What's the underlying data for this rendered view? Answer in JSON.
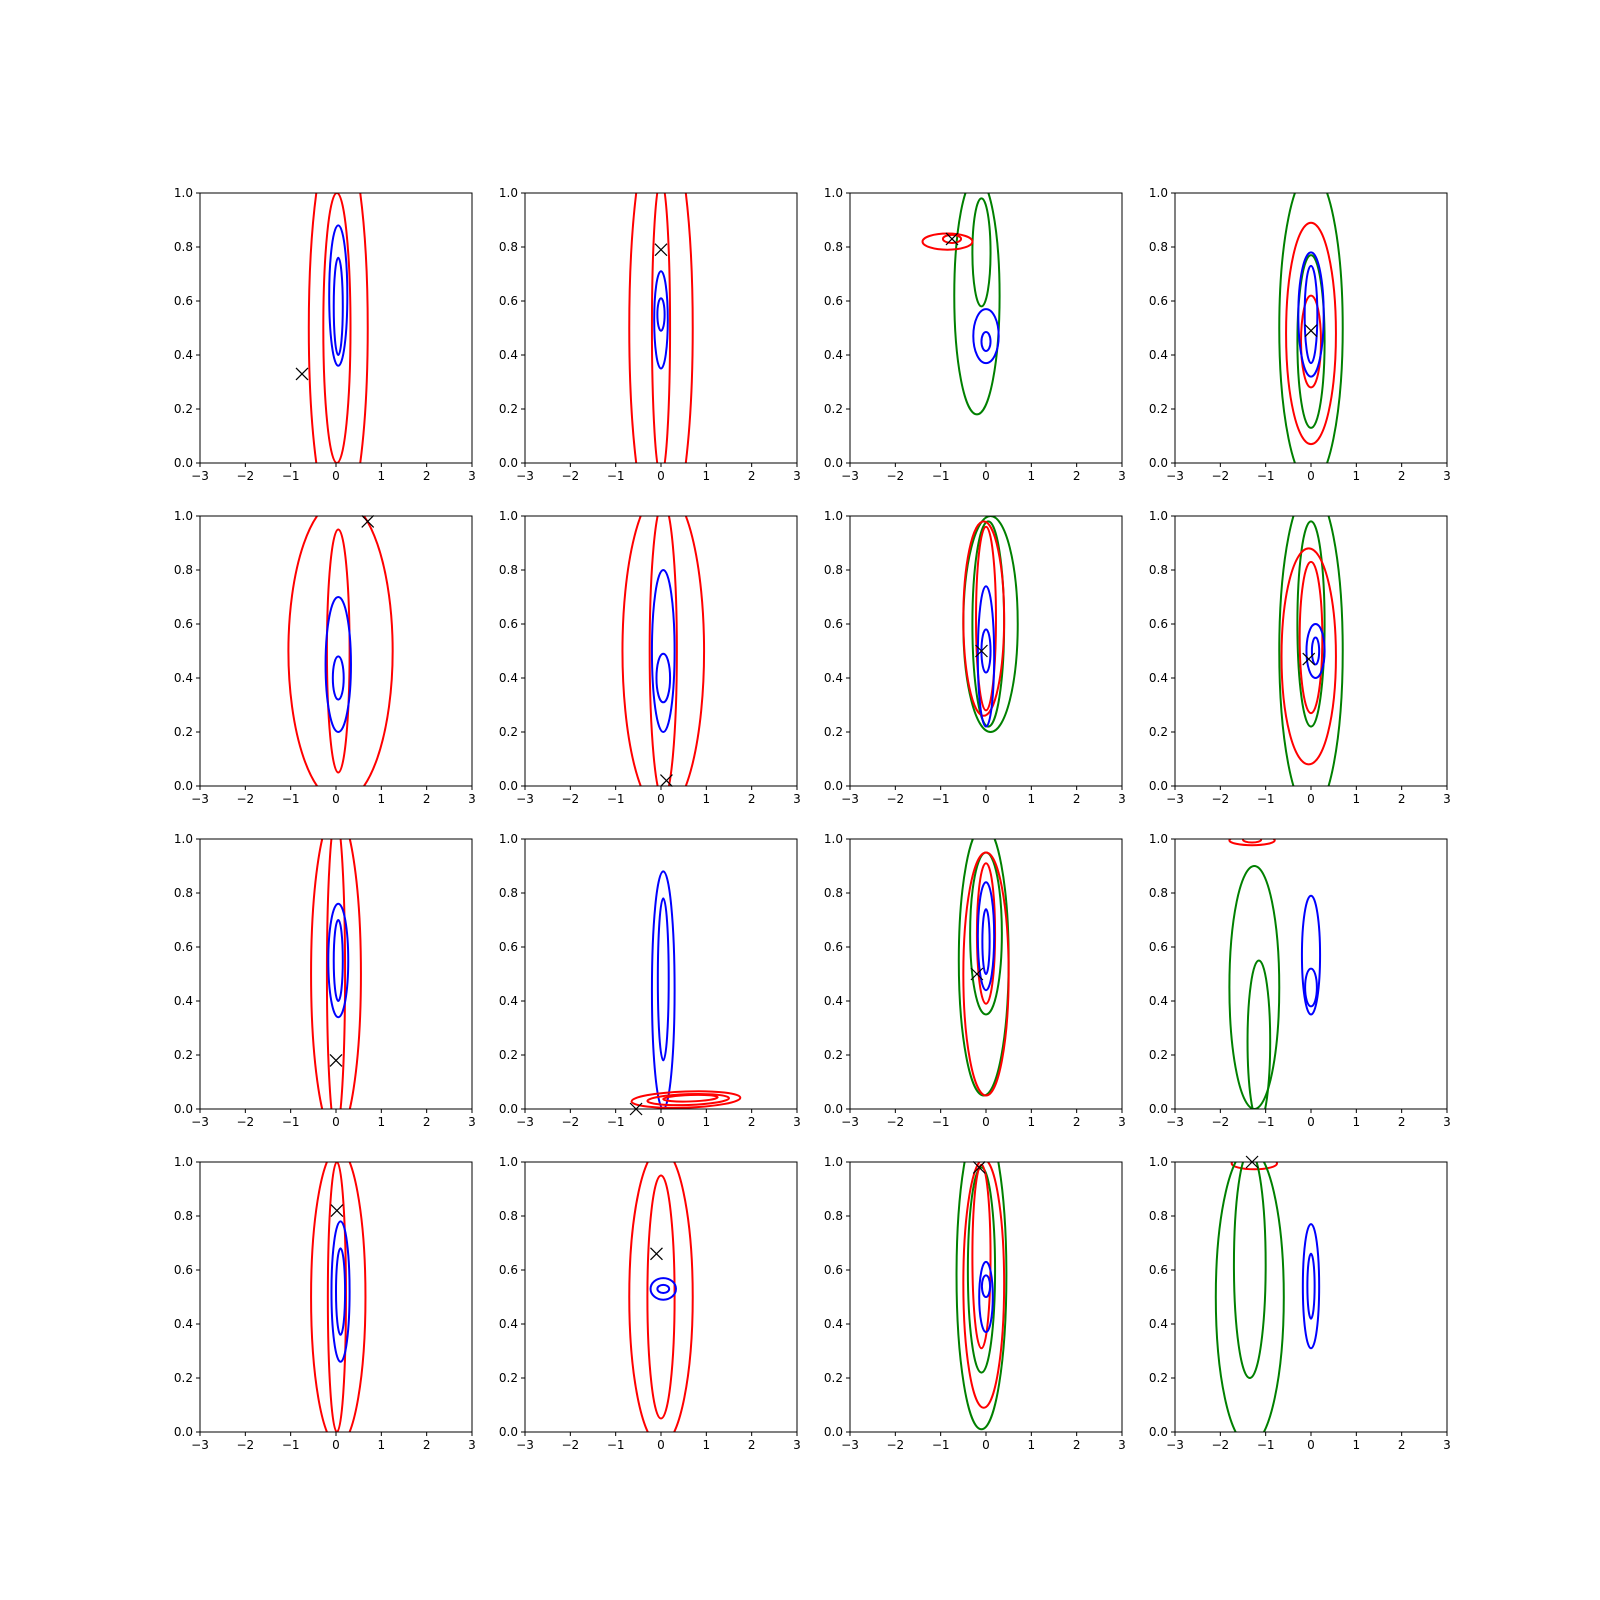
{
  "chart_data": {
    "type": "contour-grid",
    "rows": 4,
    "cols": 4,
    "xlim": [
      -3,
      3
    ],
    "ylim": [
      0,
      1
    ],
    "xticks": [
      -3,
      -2,
      -1,
      0,
      1,
      2,
      3
    ],
    "yticks": [
      0.0,
      0.2,
      0.4,
      0.6,
      0.8,
      1.0
    ],
    "xtick_labels": [
      "−3",
      "−2",
      "−1",
      "0",
      "1",
      "2",
      "3"
    ],
    "ytick_labels": [
      "0.0",
      "0.2",
      "0.4",
      "0.6",
      "0.8",
      "1.0"
    ],
    "colors": {
      "red": "#ff0000",
      "blue": "#0000ff",
      "green": "#008000",
      "marker": "#000000"
    },
    "marker_symbol": "x",
    "panels": [
      {
        "marker": [
          -0.75,
          0.33
        ],
        "contours": [
          {
            "color": "red",
            "cx": 0.05,
            "cy": 0.5,
            "rx": 0.65,
            "ry": 0.75
          },
          {
            "color": "red",
            "cx": 0.02,
            "cy": 0.5,
            "rx": 0.3,
            "ry": 0.5
          },
          {
            "color": "blue",
            "cx": 0.05,
            "cy": 0.62,
            "rx": 0.2,
            "ry": 0.26
          },
          {
            "color": "blue",
            "cx": 0.05,
            "cy": 0.58,
            "rx": 0.1,
            "ry": 0.18
          }
        ]
      },
      {
        "marker": [
          0.0,
          0.79
        ],
        "contours": [
          {
            "color": "red",
            "cx": 0.0,
            "cy": 0.5,
            "rx": 0.7,
            "ry": 0.8
          },
          {
            "color": "red",
            "cx": 0.0,
            "cy": 0.5,
            "rx": 0.2,
            "ry": 0.55
          },
          {
            "color": "blue",
            "cx": 0.0,
            "cy": 0.53,
            "rx": 0.15,
            "ry": 0.18
          },
          {
            "color": "blue",
            "cx": 0.0,
            "cy": 0.55,
            "rx": 0.08,
            "ry": 0.06
          }
        ]
      },
      {
        "marker": [
          -0.75,
          0.83
        ],
        "contours": [
          {
            "color": "green",
            "cx": -0.2,
            "cy": 0.62,
            "rx": 0.5,
            "ry": 0.44
          },
          {
            "color": "green",
            "cx": -0.1,
            "cy": 0.78,
            "rx": 0.2,
            "ry": 0.2
          },
          {
            "color": "red",
            "cx": -0.85,
            "cy": 0.82,
            "rx": 0.55,
            "ry": 0.03
          },
          {
            "color": "red",
            "cx": -0.75,
            "cy": 0.83,
            "rx": 0.2,
            "ry": 0.015
          },
          {
            "color": "blue",
            "cx": 0.0,
            "cy": 0.47,
            "rx": 0.28,
            "ry": 0.1
          },
          {
            "color": "blue",
            "cx": 0.0,
            "cy": 0.45,
            "rx": 0.1,
            "ry": 0.035
          }
        ]
      },
      {
        "marker": [
          0.0,
          0.49
        ],
        "contours": [
          {
            "color": "green",
            "cx": 0.0,
            "cy": 0.5,
            "rx": 0.7,
            "ry": 0.58
          },
          {
            "color": "green",
            "cx": 0.0,
            "cy": 0.45,
            "rx": 0.3,
            "ry": 0.32
          },
          {
            "color": "red",
            "cx": 0.0,
            "cy": 0.48,
            "rx": 0.55,
            "ry": 0.41
          },
          {
            "color": "red",
            "cx": 0.0,
            "cy": 0.45,
            "rx": 0.22,
            "ry": 0.17
          },
          {
            "color": "blue",
            "cx": 0.0,
            "cy": 0.55,
            "rx": 0.28,
            "ry": 0.23
          },
          {
            "color": "blue",
            "cx": 0.0,
            "cy": 0.55,
            "rx": 0.14,
            "ry": 0.18
          }
        ]
      },
      {
        "marker": [
          0.7,
          0.98
        ],
        "contours": [
          {
            "color": "red",
            "cx": 0.1,
            "cy": 0.5,
            "rx": 1.15,
            "ry": 0.56
          },
          {
            "color": "red",
            "cx": 0.05,
            "cy": 0.5,
            "rx": 0.25,
            "ry": 0.45
          },
          {
            "color": "blue",
            "cx": 0.05,
            "cy": 0.45,
            "rx": 0.28,
            "ry": 0.25
          },
          {
            "color": "blue",
            "cx": 0.05,
            "cy": 0.4,
            "rx": 0.12,
            "ry": 0.08
          }
        ]
      },
      {
        "marker": [
          0.12,
          0.02
        ],
        "contours": [
          {
            "color": "red",
            "cx": 0.05,
            "cy": 0.5,
            "rx": 0.9,
            "ry": 0.6
          },
          {
            "color": "red",
            "cx": 0.05,
            "cy": 0.5,
            "rx": 0.3,
            "ry": 0.55
          },
          {
            "color": "blue",
            "cx": 0.05,
            "cy": 0.5,
            "rx": 0.25,
            "ry": 0.3
          },
          {
            "color": "blue",
            "cx": 0.05,
            "cy": 0.4,
            "rx": 0.15,
            "ry": 0.09
          }
        ]
      },
      {
        "marker": [
          -0.1,
          0.5
        ],
        "contours": [
          {
            "color": "green",
            "cx": 0.1,
            "cy": 0.6,
            "rx": 0.6,
            "ry": 0.4
          },
          {
            "color": "green",
            "cx": 0.05,
            "cy": 0.6,
            "rx": 0.35,
            "ry": 0.38
          },
          {
            "color": "red",
            "cx": -0.05,
            "cy": 0.62,
            "rx": 0.45,
            "ry": 0.36
          },
          {
            "color": "red",
            "cx": 0.0,
            "cy": 0.62,
            "rx": 0.22,
            "ry": 0.34
          },
          {
            "color": "blue",
            "cx": 0.0,
            "cy": 0.48,
            "rx": 0.18,
            "ry": 0.26
          },
          {
            "color": "blue",
            "cx": 0.0,
            "cy": 0.5,
            "rx": 0.1,
            "ry": 0.08
          }
        ]
      },
      {
        "marker": [
          -0.05,
          0.47
        ],
        "contours": [
          {
            "color": "green",
            "cx": 0.0,
            "cy": 0.5,
            "rx": 0.7,
            "ry": 0.6
          },
          {
            "color": "green",
            "cx": 0.0,
            "cy": 0.6,
            "rx": 0.3,
            "ry": 0.38
          },
          {
            "color": "red",
            "cx": -0.05,
            "cy": 0.48,
            "rx": 0.6,
            "ry": 0.4
          },
          {
            "color": "red",
            "cx": 0.0,
            "cy": 0.55,
            "rx": 0.25,
            "ry": 0.28
          },
          {
            "color": "blue",
            "cx": 0.1,
            "cy": 0.5,
            "rx": 0.2,
            "ry": 0.1
          },
          {
            "color": "blue",
            "cx": 0.1,
            "cy": 0.5,
            "rx": 0.08,
            "ry": 0.05
          }
        ]
      },
      {
        "marker": [
          0.0,
          0.18
        ],
        "contours": [
          {
            "color": "red",
            "cx": 0.0,
            "cy": 0.5,
            "rx": 0.55,
            "ry": 0.6
          },
          {
            "color": "red",
            "cx": 0.0,
            "cy": 0.5,
            "rx": 0.2,
            "ry": 0.58
          },
          {
            "color": "blue",
            "cx": 0.05,
            "cy": 0.55,
            "rx": 0.22,
            "ry": 0.21
          },
          {
            "color": "blue",
            "cx": 0.05,
            "cy": 0.55,
            "rx": 0.1,
            "ry": 0.15
          }
        ]
      },
      {
        "marker": [
          -0.55,
          0.0
        ],
        "contours": [
          {
            "color": "blue",
            "cx": 0.05,
            "cy": 0.44,
            "rx": 0.25,
            "ry": 0.44
          },
          {
            "color": "blue",
            "cx": 0.05,
            "cy": 0.48,
            "rx": 0.12,
            "ry": 0.3
          },
          {
            "color": "red",
            "cx": 0.55,
            "cy": 0.035,
            "rx": 1.2,
            "ry": 0.03,
            "tilt": -2
          },
          {
            "color": "red",
            "cx": 0.6,
            "cy": 0.035,
            "rx": 0.9,
            "ry": 0.02,
            "tilt": -2
          },
          {
            "color": "red",
            "cx": 0.65,
            "cy": 0.04,
            "rx": 0.6,
            "ry": 0.012,
            "tilt": -2
          }
        ]
      },
      {
        "marker": [
          -0.2,
          0.5
        ],
        "contours": [
          {
            "color": "green",
            "cx": -0.05,
            "cy": 0.55,
            "rx": 0.55,
            "ry": 0.5
          },
          {
            "color": "green",
            "cx": 0.0,
            "cy": 0.65,
            "rx": 0.35,
            "ry": 0.3
          },
          {
            "color": "red",
            "cx": 0.0,
            "cy": 0.5,
            "rx": 0.5,
            "ry": 0.45
          },
          {
            "color": "red",
            "cx": 0.0,
            "cy": 0.65,
            "rx": 0.2,
            "ry": 0.26
          },
          {
            "color": "blue",
            "cx": 0.0,
            "cy": 0.64,
            "rx": 0.18,
            "ry": 0.2
          },
          {
            "color": "blue",
            "cx": 0.0,
            "cy": 0.62,
            "rx": 0.08,
            "ry": 0.12
          }
        ]
      },
      {
        "marker": null,
        "contours": [
          {
            "color": "red",
            "cx": -1.3,
            "cy": 0.995,
            "rx": 0.5,
            "ry": 0.018
          },
          {
            "color": "red",
            "cx": -1.3,
            "cy": 0.997,
            "rx": 0.2,
            "ry": 0.01
          },
          {
            "color": "green",
            "cx": -1.25,
            "cy": 0.45,
            "rx": 0.55,
            "ry": 0.45
          },
          {
            "color": "green",
            "cx": -1.15,
            "cy": 0.25,
            "rx": 0.25,
            "ry": 0.3
          },
          {
            "color": "blue",
            "cx": 0.0,
            "cy": 0.57,
            "rx": 0.2,
            "ry": 0.22
          },
          {
            "color": "blue",
            "cx": 0.0,
            "cy": 0.45,
            "rx": 0.13,
            "ry": 0.07
          }
        ]
      },
      {
        "marker": [
          0.02,
          0.82
        ],
        "contours": [
          {
            "color": "red",
            "cx": 0.05,
            "cy": 0.5,
            "rx": 0.6,
            "ry": 0.55
          },
          {
            "color": "red",
            "cx": 0.02,
            "cy": 0.5,
            "rx": 0.2,
            "ry": 0.5
          },
          {
            "color": "blue",
            "cx": 0.1,
            "cy": 0.52,
            "rx": 0.2,
            "ry": 0.26
          },
          {
            "color": "blue",
            "cx": 0.1,
            "cy": 0.52,
            "rx": 0.1,
            "ry": 0.16
          }
        ]
      },
      {
        "marker": [
          -0.1,
          0.66
        ],
        "contours": [
          {
            "color": "red",
            "cx": 0.0,
            "cy": 0.5,
            "rx": 0.7,
            "ry": 0.55
          },
          {
            "color": "red",
            "cx": 0.0,
            "cy": 0.5,
            "rx": 0.3,
            "ry": 0.45
          },
          {
            "color": "blue",
            "cx": 0.05,
            "cy": 0.53,
            "rx": 0.28,
            "ry": 0.04
          },
          {
            "color": "blue",
            "cx": 0.05,
            "cy": 0.53,
            "rx": 0.13,
            "ry": 0.015
          }
        ]
      },
      {
        "marker": [
          -0.15,
          0.98
        ],
        "contours": [
          {
            "color": "green",
            "cx": -0.1,
            "cy": 0.58,
            "rx": 0.55,
            "ry": 0.57
          },
          {
            "color": "green",
            "cx": -0.1,
            "cy": 0.6,
            "rx": 0.3,
            "ry": 0.38
          },
          {
            "color": "red",
            "cx": -0.05,
            "cy": 0.55,
            "rx": 0.45,
            "ry": 0.46
          },
          {
            "color": "red",
            "cx": -0.1,
            "cy": 0.65,
            "rx": 0.2,
            "ry": 0.34
          },
          {
            "color": "blue",
            "cx": 0.0,
            "cy": 0.5,
            "rx": 0.15,
            "ry": 0.13
          },
          {
            "color": "blue",
            "cx": 0.0,
            "cy": 0.54,
            "rx": 0.09,
            "ry": 0.04
          }
        ]
      },
      {
        "marker": [
          -1.3,
          1.0
        ],
        "contours": [
          {
            "color": "red",
            "cx": -1.25,
            "cy": 0.995,
            "rx": 0.5,
            "ry": 0.022
          },
          {
            "color": "green",
            "cx": -1.35,
            "cy": 0.5,
            "rx": 0.75,
            "ry": 0.55
          },
          {
            "color": "green",
            "cx": -1.35,
            "cy": 0.62,
            "rx": 0.35,
            "ry": 0.42
          },
          {
            "color": "blue",
            "cx": 0.0,
            "cy": 0.54,
            "rx": 0.18,
            "ry": 0.23
          },
          {
            "color": "blue",
            "cx": 0.0,
            "cy": 0.54,
            "rx": 0.08,
            "ry": 0.12
          }
        ]
      }
    ]
  }
}
